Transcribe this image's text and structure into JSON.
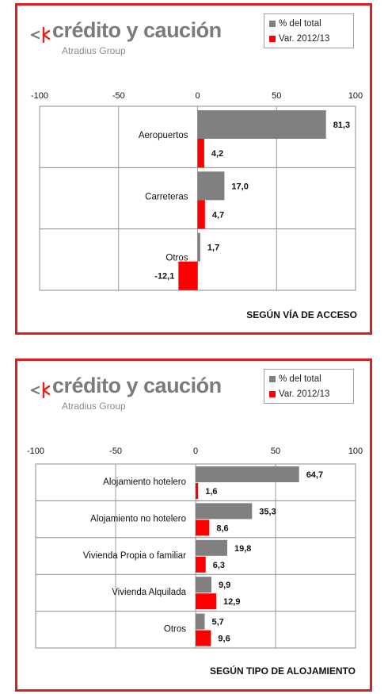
{
  "brand": {
    "name": "crédito y caución",
    "subtitle": "Atradius Group",
    "accent": "#e2231a",
    "text_color": "#7b7b7b"
  },
  "legend": {
    "items": [
      {
        "label": "% del total",
        "color": "#808080"
      },
      {
        "label": "Var. 2012/13",
        "color": "#ff0000"
      }
    ]
  },
  "chart_data": [
    {
      "type": "bar",
      "orientation": "horizontal",
      "title": "SEGÚN VÍA DE ACCESO",
      "categories": [
        "Aeropuertos",
        "Carreteras",
        "Otros"
      ],
      "series": [
        {
          "name": "% del total",
          "color": "#808080",
          "values": [
            81.3,
            17.0,
            1.7
          ],
          "labels": [
            "81,3",
            "17,0",
            "1,7"
          ]
        },
        {
          "name": "Var. 2012/13",
          "color": "#ff0000",
          "values": [
            4.2,
            4.7,
            -12.1
          ],
          "labels": [
            "4,2",
            "4,7",
            "-12,1"
          ]
        }
      ],
      "xlim": [
        -100,
        100
      ],
      "xticks": [
        "-100",
        "-50",
        "0",
        "50",
        "100"
      ],
      "grid": true,
      "legend_position": "top-right"
    },
    {
      "type": "bar",
      "orientation": "horizontal",
      "title": "SEGÚN TIPO DE ALOJAMIENTO",
      "categories": [
        "Alojamiento hotelero",
        "Alojamiento no hotelero",
        "Vivienda Propia o familiar",
        "Vivienda Alquilada",
        "Otros"
      ],
      "series": [
        {
          "name": "% del total",
          "color": "#808080",
          "values": [
            64.7,
            35.3,
            19.8,
            9.9,
            5.7
          ],
          "labels": [
            "64,7",
            "35,3",
            "19,8",
            "9,9",
            "5,7"
          ]
        },
        {
          "name": "Var. 2012/13",
          "color": "#ff0000",
          "values": [
            1.6,
            8.6,
            6.3,
            12.9,
            9.6
          ],
          "labels": [
            "1,6",
            "8,6",
            "6,3",
            "12,9",
            "9,6"
          ]
        }
      ],
      "xlim": [
        -100,
        100
      ],
      "xticks": [
        "-100",
        "-50",
        "0",
        "50",
        "100"
      ],
      "grid": true,
      "legend_position": "top-right"
    }
  ]
}
